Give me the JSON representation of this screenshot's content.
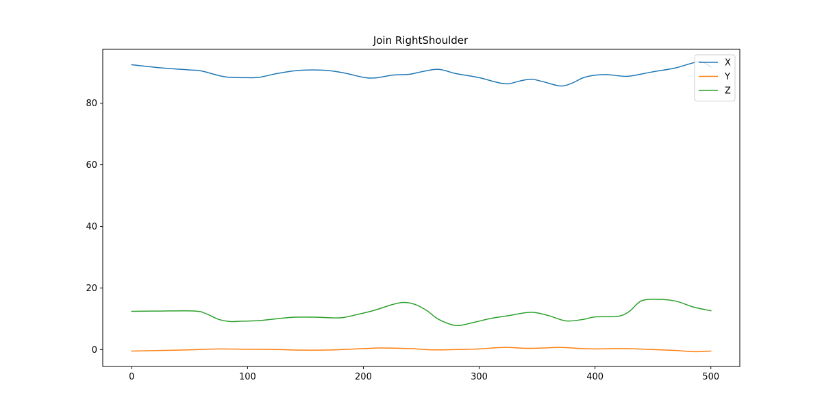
{
  "chart_data": {
    "type": "line",
    "title": "Join RightShoulder",
    "xlabel": "",
    "ylabel": "",
    "xlim": [
      -25,
      525
    ],
    "ylim": [
      -5.5,
      97.5
    ],
    "xticks": [
      0,
      100,
      200,
      300,
      400,
      500
    ],
    "yticks": [
      0,
      20,
      40,
      60,
      80
    ],
    "grid": false,
    "legend_position": "top-right",
    "series": [
      {
        "name": "X",
        "color": "#1f77b4",
        "x": [
          0,
          25,
          50,
          60,
          75,
          85,
          100,
          110,
          125,
          140,
          155,
          170,
          185,
          200,
          210,
          225,
          240,
          250,
          265,
          280,
          300,
          315,
          325,
          335,
          345,
          355,
          370,
          380,
          390,
          400,
          410,
          420,
          430,
          450,
          470,
          490,
          500
        ],
        "values": [
          92.5,
          91.5,
          90.8,
          90.5,
          89.0,
          88.4,
          88.3,
          88.4,
          89.6,
          90.5,
          90.8,
          90.6,
          89.7,
          88.4,
          88.2,
          89.1,
          89.4,
          90.2,
          91.0,
          89.6,
          88.3,
          86.8,
          86.3,
          87.2,
          87.8,
          87.0,
          85.6,
          86.5,
          88.3,
          89.1,
          89.3,
          88.9,
          88.8,
          90.2,
          91.5,
          93.5,
          91.8
        ]
      },
      {
        "name": "Y",
        "color": "#ff7f0e",
        "x": [
          0,
          25,
          50,
          75,
          100,
          125,
          150,
          175,
          200,
          215,
          240,
          260,
          280,
          300,
          315,
          325,
          340,
          355,
          370,
          385,
          400,
          425,
          450,
          470,
          485,
          500
        ],
        "values": [
          -0.5,
          -0.3,
          -0.1,
          0.2,
          0.1,
          0.0,
          -0.2,
          -0.1,
          0.3,
          0.5,
          0.3,
          -0.1,
          0.0,
          0.2,
          0.6,
          0.7,
          0.4,
          0.5,
          0.7,
          0.4,
          0.2,
          0.3,
          0.0,
          -0.3,
          -0.7,
          -0.5
        ]
      },
      {
        "name": "Z",
        "color": "#2ca02c",
        "x": [
          0,
          25,
          55,
          65,
          75,
          85,
          95,
          110,
          125,
          140,
          160,
          180,
          195,
          210,
          225,
          235,
          245,
          255,
          265,
          280,
          295,
          310,
          325,
          345,
          360,
          375,
          390,
          400,
          420,
          430,
          440,
          455,
          470,
          485,
          500
        ],
        "values": [
          12.4,
          12.5,
          12.5,
          11.5,
          9.8,
          9.1,
          9.2,
          9.4,
          10.0,
          10.5,
          10.5,
          10.3,
          11.4,
          12.8,
          14.6,
          15.3,
          14.6,
          12.6,
          9.8,
          7.8,
          8.8,
          10.1,
          11.0,
          12.1,
          11.0,
          9.3,
          9.8,
          10.6,
          10.8,
          12.5,
          15.8,
          16.3,
          15.7,
          13.8,
          12.6
        ]
      }
    ]
  }
}
